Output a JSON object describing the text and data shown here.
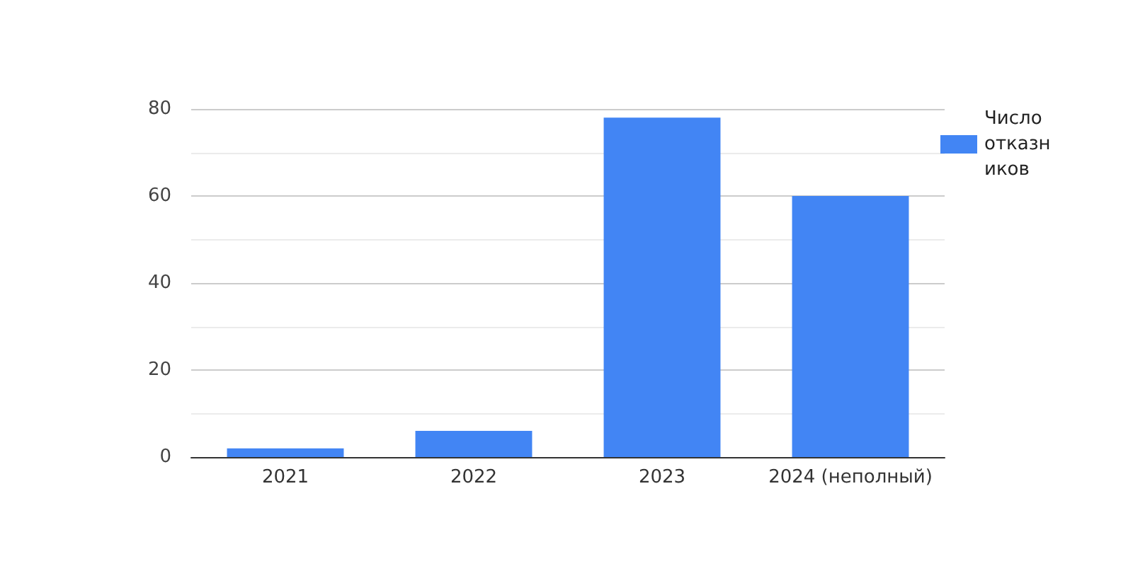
{
  "chart_data": {
    "type": "bar",
    "categories": [
      "2021",
      "2022",
      "2023",
      "2024 (неполный)"
    ],
    "series": [
      {
        "name": "Число отказников",
        "color": "#4285f4",
        "values": [
          2,
          6,
          78,
          60
        ]
      }
    ],
    "ylim": [
      0,
      80
    ],
    "yticks": [
      0,
      20,
      40,
      60,
      80
    ],
    "grid": "y",
    "legend": "right"
  }
}
